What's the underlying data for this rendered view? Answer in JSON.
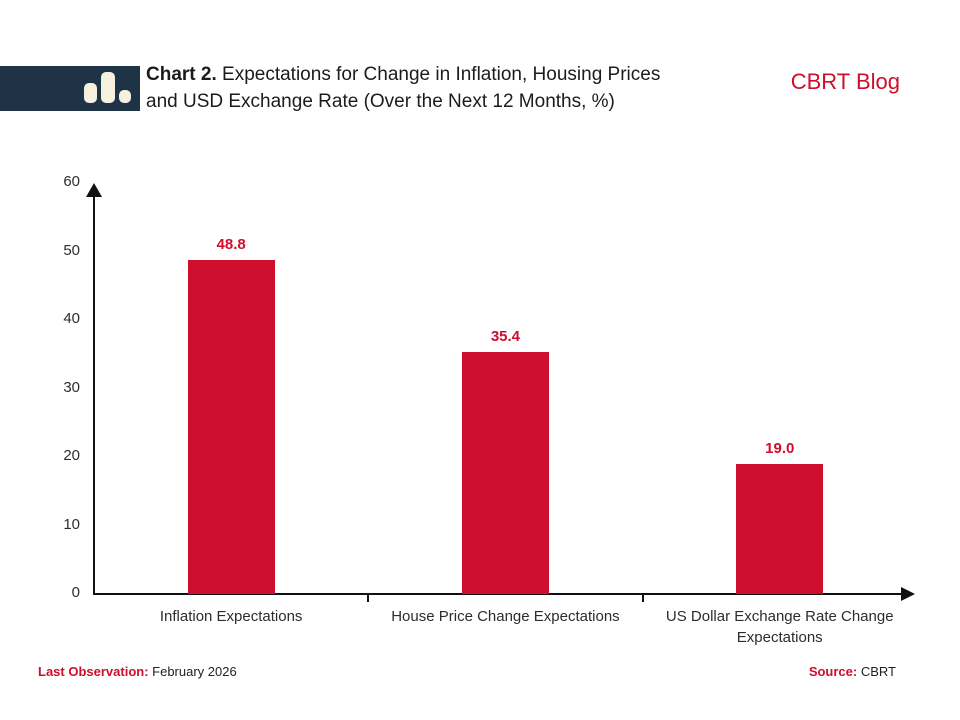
{
  "header": {
    "title_prefix": "Chart 2.",
    "title_line1_rest": " Expectations for Change in Inflation, Housing Prices",
    "title_line2": "and USD Exchange Rate (Over the Next 12 Months, %)",
    "brand": "CBRT Blog"
  },
  "logo": {
    "icon": "bar-chart-icon"
  },
  "chart_data": {
    "type": "bar",
    "title": "Chart 2. Expectations for Change in Inflation, Housing Prices and USD Exchange Rate (Over the Next 12 Months, %)",
    "categories": [
      "Inflation Expectations",
      "House Price Change Expectations",
      "US Dollar Exchange Rate Change Expectations"
    ],
    "values": [
      48.8,
      35.4,
      19.0
    ],
    "value_labels": [
      "48.8",
      "35.4",
      "19.0"
    ],
    "xlabel": "",
    "ylabel": "",
    "ylim": [
      0,
      60
    ],
    "yticks": [
      0,
      10,
      20,
      30,
      40,
      50,
      60
    ],
    "grid": false,
    "legend": false,
    "bar_color": "#CE0E2D"
  },
  "footer": {
    "left_label": "Last Observation:",
    "left_value": "February 2026",
    "right_label": "Source:",
    "right_value": "CBRT"
  },
  "colors": {
    "accent_red": "#CE0E2D",
    "logo_navy": "#1F3347",
    "logo_cream": "#F6F0DE",
    "text_dark": "#1C1C1C",
    "axis_black": "#111111"
  }
}
